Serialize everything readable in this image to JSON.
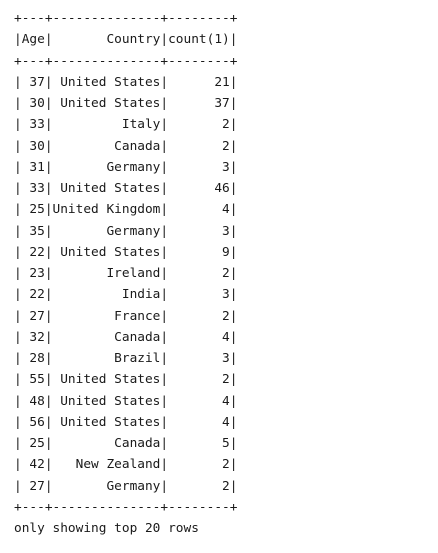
{
  "table": {
    "border": "+---+--------------+--------+",
    "header": "|Age|       Country|count(1)|",
    "columns": [
      "Age",
      "Country",
      "count(1)"
    ],
    "rows": [
      {
        "line": "| 37| United States|      21|",
        "age": "37",
        "country": "United States",
        "count": "21"
      },
      {
        "line": "| 30| United States|      37|",
        "age": "30",
        "country": "United States",
        "count": "37"
      },
      {
        "line": "| 33|         Italy|       2|",
        "age": "33",
        "country": "Italy",
        "count": "2"
      },
      {
        "line": "| 30|        Canada|       2|",
        "age": "30",
        "country": "Canada",
        "count": "2"
      },
      {
        "line": "| 31|       Germany|       3|",
        "age": "31",
        "country": "Germany",
        "count": "3"
      },
      {
        "line": "| 33| United States|      46|",
        "age": "33",
        "country": "United States",
        "count": "46"
      },
      {
        "line": "| 25|United Kingdom|       4|",
        "age": "25",
        "country": "United Kingdom",
        "count": "4"
      },
      {
        "line": "| 35|       Germany|       3|",
        "age": "35",
        "country": "Germany",
        "count": "3"
      },
      {
        "line": "| 22| United States|       9|",
        "age": "22",
        "country": "United States",
        "count": "9"
      },
      {
        "line": "| 23|       Ireland|       2|",
        "age": "23",
        "country": "Ireland",
        "count": "2"
      },
      {
        "line": "| 22|         India|       3|",
        "age": "22",
        "country": "India",
        "count": "3"
      },
      {
        "line": "| 27|        France|       2|",
        "age": "27",
        "country": "France",
        "count": "2"
      },
      {
        "line": "| 32|        Canada|       4|",
        "age": "32",
        "country": "Canada",
        "count": "4"
      },
      {
        "line": "| 28|        Brazil|       3|",
        "age": "28",
        "country": "Brazil",
        "count": "3"
      },
      {
        "line": "| 55| United States|       2|",
        "age": "55",
        "country": "United States",
        "count": "2"
      },
      {
        "line": "| 48| United States|       4|",
        "age": "48",
        "country": "United States",
        "count": "4"
      },
      {
        "line": "| 56| United States|       4|",
        "age": "56",
        "country": "United States",
        "count": "4"
      },
      {
        "line": "| 25|        Canada|       5|",
        "age": "25",
        "country": "Canada",
        "count": "5"
      },
      {
        "line": "| 42|   New Zealand|       2|",
        "age": "42",
        "country": "New Zealand",
        "count": "2"
      },
      {
        "line": "| 27|       Germany|       2|",
        "age": "27",
        "country": "Germany",
        "count": "2"
      }
    ]
  },
  "footer": "only showing top 20 rows"
}
